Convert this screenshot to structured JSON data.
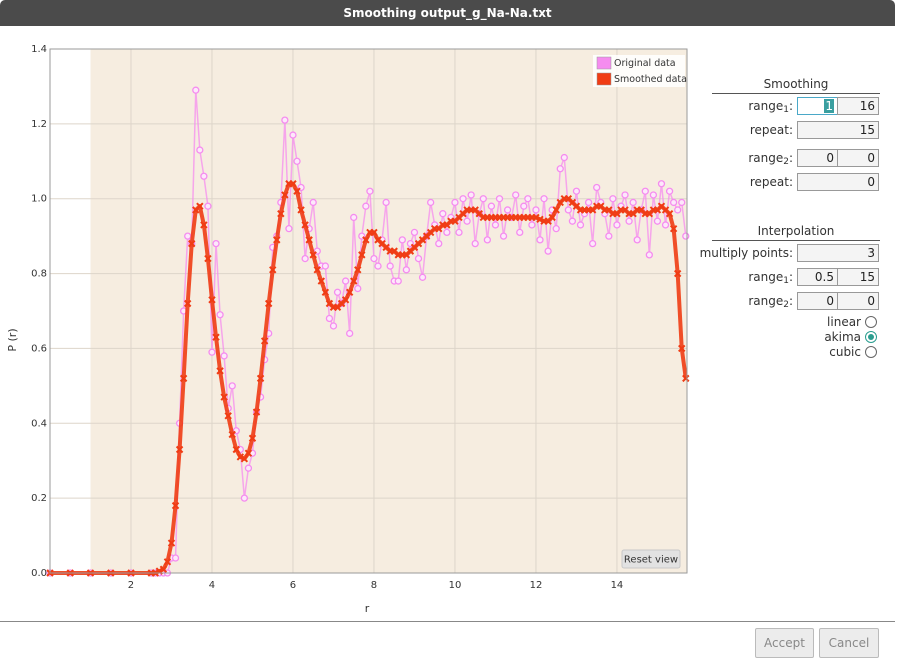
{
  "window": {
    "title": "Smoothing output_g_Na-Na.txt"
  },
  "chart_data": {
    "type": "line",
    "xlabel": "r",
    "ylabel": "P (r)",
    "xlim": [
      0,
      15.73
    ],
    "ylim": [
      0,
      1.4
    ],
    "xticks": [
      2,
      4,
      6,
      8,
      10,
      12,
      14
    ],
    "yticks": [
      {
        "value": 0,
        "label": "0.0"
      },
      0.2,
      0.4,
      0.6,
      0.8,
      {
        "value": 1,
        "label": "1.0"
      },
      1.2,
      1.4
    ],
    "grid": true,
    "legend": "upper right",
    "reset_button": "Reset view",
    "x": [
      0,
      0.5,
      1,
      1.5,
      2,
      2.5,
      2.6,
      2.7,
      2.8,
      2.9,
      3.0,
      3.1,
      3.2,
      3.3,
      3.4,
      3.5,
      3.6,
      3.7,
      3.8,
      3.9,
      4.0,
      4.1,
      4.2,
      4.3,
      4.4,
      4.5,
      4.6,
      4.7,
      4.8,
      4.9,
      5.0,
      5.1,
      5.2,
      5.3,
      5.4,
      5.5,
      5.6,
      5.7,
      5.8,
      5.9,
      6.0,
      6.1,
      6.2,
      6.3,
      6.4,
      6.5,
      6.6,
      6.7,
      6.8,
      6.9,
      7.0,
      7.1,
      7.2,
      7.3,
      7.4,
      7.5,
      7.6,
      7.7,
      7.8,
      7.9,
      8.0,
      8.1,
      8.2,
      8.3,
      8.4,
      8.5,
      8.6,
      8.7,
      8.8,
      8.9,
      9.0,
      9.1,
      9.2,
      9.3,
      9.4,
      9.5,
      9.6,
      9.7,
      9.8,
      9.9,
      10.0,
      10.1,
      10.2,
      10.3,
      10.4,
      10.5,
      10.6,
      10.7,
      10.8,
      10.9,
      11.0,
      11.1,
      11.2,
      11.3,
      11.4,
      11.5,
      11.6,
      11.7,
      11.8,
      11.9,
      12.0,
      12.1,
      12.2,
      12.3,
      12.4,
      12.5,
      12.6,
      12.7,
      12.8,
      12.9,
      13.0,
      13.1,
      13.2,
      13.3,
      13.4,
      13.5,
      13.6,
      13.7,
      13.8,
      13.9,
      14.0,
      14.1,
      14.2,
      14.3,
      14.4,
      14.5,
      14.6,
      14.7,
      14.8,
      14.9,
      15.0,
      15.1,
      15.2,
      15.3,
      15.4,
      15.5,
      15.6,
      15.7
    ],
    "series": [
      {
        "name": "Original data",
        "color": "#f58cef",
        "marker": "circle",
        "values": [
          0,
          0,
          0,
          0,
          0,
          0,
          0,
          0,
          0,
          0,
          0.04,
          0.04,
          0.4,
          0.7,
          0.9,
          0.88,
          1.29,
          1.13,
          1.06,
          0.98,
          0.59,
          0.88,
          0.69,
          0.58,
          0.44,
          0.5,
          0.38,
          0.33,
          0.2,
          0.28,
          0.32,
          0.43,
          0.47,
          0.57,
          0.64,
          0.87,
          0.9,
          0.99,
          1.21,
          0.92,
          1.17,
          1.1,
          1.03,
          0.84,
          0.92,
          0.99,
          0.86,
          0.82,
          0.82,
          0.68,
          0.66,
          0.75,
          0.72,
          0.78,
          0.64,
          0.95,
          0.76,
          0.9,
          0.98,
          1.02,
          0.84,
          0.82,
          0.89,
          0.99,
          0.82,
          0.78,
          0.78,
          0.89,
          0.81,
          0.88,
          0.91,
          0.84,
          0.79,
          0.9,
          0.99,
          0.93,
          0.88,
          0.96,
          0.91,
          0.95,
          0.99,
          0.91,
          1.0,
          0.94,
          1.01,
          0.88,
          0.96,
          1.0,
          0.89,
          0.98,
          0.93,
          1.0,
          0.9,
          0.97,
          0.95,
          1.01,
          0.91,
          0.98,
          1.0,
          0.93,
          0.97,
          0.89,
          1.0,
          0.86,
          0.97,
          0.92,
          1.08,
          1.11,
          0.97,
          0.94,
          1.02,
          0.93,
          0.96,
          0.99,
          0.88,
          1.03,
          0.99,
          0.96,
          0.9,
          1.0,
          0.93,
          0.98,
          1.01,
          0.94,
          0.99,
          0.89,
          0.97,
          1.02,
          0.85,
          1.01,
          0.94,
          1.04,
          0.93,
          1.02,
          0.99,
          0.97,
          0.99,
          0.9
        ]
      },
      {
        "name": "Smoothed data",
        "color": "#f03c14",
        "marker": "cross",
        "values": [
          0,
          0,
          0,
          0,
          0,
          0,
          0,
          0.005,
          0.01,
          0.03,
          0.08,
          0.18,
          0.33,
          0.52,
          0.72,
          0.88,
          0.97,
          0.98,
          0.93,
          0.84,
          0.73,
          0.63,
          0.54,
          0.47,
          0.42,
          0.37,
          0.33,
          0.31,
          0.305,
          0.32,
          0.36,
          0.43,
          0.52,
          0.62,
          0.72,
          0.81,
          0.89,
          0.96,
          1.01,
          1.04,
          1.04,
          1.02,
          0.97,
          0.93,
          0.89,
          0.85,
          0.81,
          0.78,
          0.75,
          0.72,
          0.71,
          0.71,
          0.72,
          0.73,
          0.75,
          0.78,
          0.81,
          0.85,
          0.89,
          0.91,
          0.91,
          0.89,
          0.88,
          0.87,
          0.86,
          0.86,
          0.85,
          0.85,
          0.85,
          0.86,
          0.87,
          0.88,
          0.89,
          0.9,
          0.91,
          0.92,
          0.92,
          0.93,
          0.93,
          0.94,
          0.94,
          0.95,
          0.96,
          0.97,
          0.97,
          0.97,
          0.96,
          0.95,
          0.95,
          0.95,
          0.95,
          0.95,
          0.95,
          0.95,
          0.95,
          0.95,
          0.95,
          0.95,
          0.95,
          0.95,
          0.95,
          0.945,
          0.94,
          0.94,
          0.95,
          0.97,
          0.99,
          1.0,
          1.0,
          0.99,
          0.98,
          0.97,
          0.97,
          0.97,
          0.97,
          0.98,
          0.98,
          0.97,
          0.97,
          0.96,
          0.96,
          0.97,
          0.97,
          0.96,
          0.96,
          0.97,
          0.97,
          0.96,
          0.96,
          0.97,
          0.97,
          0.98,
          0.97,
          0.96,
          0.92,
          0.8,
          0.6,
          0.52
        ]
      }
    ]
  },
  "panel": {
    "smoothing": {
      "title": "Smoothing",
      "range1": {
        "label": [
          "range",
          "1",
          ":"
        ],
        "values": [
          1,
          16
        ]
      },
      "repeat1": {
        "label": "repeat:",
        "value": 15
      },
      "range2": {
        "label": [
          "range",
          "2",
          ":"
        ],
        "values": [
          0,
          0
        ]
      },
      "repeat2": {
        "label": "repeat:",
        "value": 0
      }
    },
    "interpolation": {
      "title": "Interpolation",
      "multiply": {
        "label": "multiply points:",
        "value": 3
      },
      "range1": {
        "label": [
          "range",
          "1",
          ":"
        ],
        "values": [
          0.5,
          15
        ]
      },
      "range2": {
        "label": [
          "range",
          "2",
          ":"
        ],
        "values": [
          0,
          0
        ]
      },
      "methods": [
        "linear",
        "akima",
        "cubic"
      ],
      "selected": "akima"
    }
  },
  "buttons": [
    "Accept",
    "Cancel"
  ]
}
